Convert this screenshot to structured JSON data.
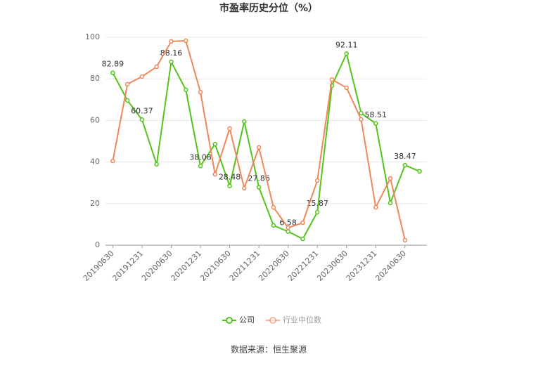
{
  "chart_data": {
    "type": "line",
    "title": "市盈率历史分位（%）",
    "categories": [
      "20190630",
      null,
      "20191231",
      null,
      "20200630",
      null,
      "20201231",
      null,
      "20210630",
      null,
      "20211231",
      null,
      "20220630",
      null,
      "20221231",
      null,
      "20230630",
      null,
      "20231231",
      null,
      "20240630",
      null
    ],
    "series": [
      {
        "name": "公司",
        "color": "#52c41a",
        "values": [
          82.89,
          69.6,
          60.37,
          38.9,
          88.16,
          74.7,
          38.08,
          48.6,
          28.48,
          59.5,
          27.86,
          9.5,
          6.58,
          3.0,
          15.87,
          76.7,
          92.11,
          63.5,
          58.51,
          20.3,
          38.47,
          35.5
        ],
        "value_labels": [
          "82.89",
          null,
          "60.37",
          null,
          "88.16",
          null,
          "38.08",
          null,
          "28.48",
          null,
          "27.86",
          null,
          "6.58",
          null,
          "15.87",
          null,
          "92.11",
          null,
          "58.51",
          null,
          "38.47",
          null
        ]
      },
      {
        "name": "行业中位数",
        "color": "#f0875a",
        "values": [
          40.5,
          77.4,
          81.1,
          85.8,
          98.0,
          98.3,
          73.6,
          34.1,
          56.1,
          27.4,
          47.0,
          18.2,
          8.4,
          10.8,
          31.1,
          79.7,
          75.7,
          60.5,
          18.2,
          32.1,
          2.4,
          null
        ]
      }
    ],
    "ylim": [
      0,
      100
    ],
    "yticks": [
      0,
      20,
      40,
      60,
      80,
      100
    ],
    "grid": true,
    "source": "数据来源：恒生聚源"
  }
}
